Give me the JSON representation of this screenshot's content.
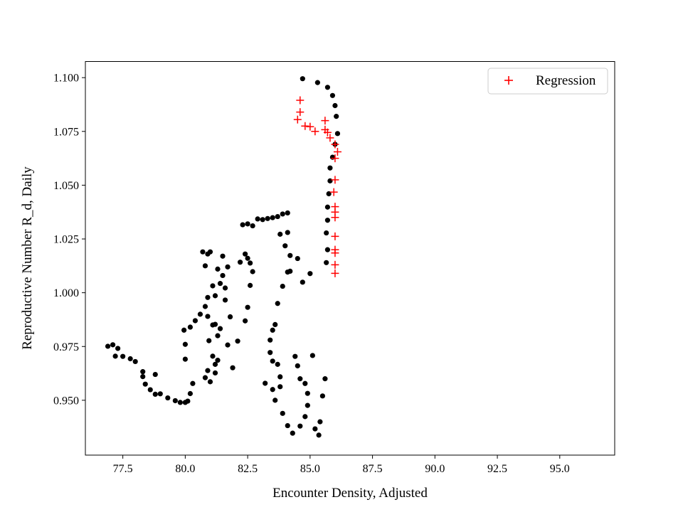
{
  "chart_data": {
    "type": "scatter",
    "title": "",
    "xlabel": "Encounter Density, Adjusted",
    "ylabel": "Reproductive Number R_d, Daily",
    "xlim": [
      76.0,
      97.2
    ],
    "ylim": [
      0.9245,
      1.1075
    ],
    "xticks": [
      77.5,
      80.0,
      82.5,
      85.0,
      87.5,
      90.0,
      92.5,
      95.0
    ],
    "xtick_labels": [
      "77.5",
      "80.0",
      "82.5",
      "85.0",
      "87.5",
      "90.0",
      "92.5",
      "95.0"
    ],
    "yticks": [
      0.95,
      0.975,
      1.0,
      1.025,
      1.05,
      1.075,
      1.1
    ],
    "ytick_labels": [
      "0.950",
      "0.975",
      "1.000",
      "1.025",
      "1.050",
      "1.075",
      "1.100"
    ],
    "grid": false,
    "legend": {
      "position": "top-right",
      "entries": [
        "Regression"
      ]
    },
    "series": [
      {
        "marker": "dot",
        "color": "#000000",
        "points": [
          [
            76.9,
            0.9751
          ],
          [
            77.1,
            0.9758
          ],
          [
            77.3,
            0.9741
          ],
          [
            77.2,
            0.9705
          ],
          [
            77.5,
            0.9704
          ],
          [
            77.8,
            0.9693
          ],
          [
            78.0,
            0.968
          ],
          [
            78.3,
            0.9633
          ],
          [
            78.3,
            0.961
          ],
          [
            78.4,
            0.9575
          ],
          [
            78.6,
            0.9549
          ],
          [
            78.8,
            0.962
          ],
          [
            78.8,
            0.9528
          ],
          [
            79.0,
            0.953
          ],
          [
            79.3,
            0.9511
          ],
          [
            79.6,
            0.9498
          ],
          [
            79.8,
            0.949
          ],
          [
            80.0,
            0.949
          ],
          [
            80.1,
            0.9496
          ],
          [
            80.2,
            0.9531
          ],
          [
            80.3,
            0.9578
          ],
          [
            80.0,
            0.9691
          ],
          [
            80.0,
            0.976
          ],
          [
            79.95,
            0.9826
          ],
          [
            80.2,
            0.984
          ],
          [
            80.4,
            0.987
          ],
          [
            80.6,
            0.99
          ],
          [
            80.8,
            0.9936
          ],
          [
            80.9,
            0.9978
          ],
          [
            80.9,
            0.989
          ],
          [
            81.1,
            0.985
          ],
          [
            80.95,
            0.9777
          ],
          [
            81.1,
            0.9705
          ],
          [
            81.2,
            0.9667
          ],
          [
            80.9,
            0.9638
          ],
          [
            80.8,
            0.9605
          ],
          [
            81.0,
            0.9586
          ],
          [
            81.2,
            0.9627
          ],
          [
            81.3,
            0.9686
          ],
          [
            81.3,
            0.98
          ],
          [
            81.4,
            0.9833
          ],
          [
            81.2,
            0.9853
          ],
          [
            80.8,
            1.0125
          ],
          [
            80.9,
            1.018
          ],
          [
            80.7,
            1.019
          ],
          [
            81.0,
            1.019
          ],
          [
            81.1,
            1.0032
          ],
          [
            81.2,
            0.9986
          ],
          [
            81.4,
            1.0043
          ],
          [
            81.5,
            1.008
          ],
          [
            81.3,
            1.011
          ],
          [
            81.5,
            1.017
          ],
          [
            81.7,
            1.012
          ],
          [
            81.6,
            1.0022
          ],
          [
            81.6,
            0.9966
          ],
          [
            81.8,
            0.9888
          ],
          [
            81.7,
            0.9757
          ],
          [
            81.9,
            0.9651
          ],
          [
            82.1,
            0.9775
          ],
          [
            82.2,
            1.0142
          ],
          [
            82.4,
            1.018
          ],
          [
            82.5,
            1.016
          ],
          [
            82.6,
            1.0138
          ],
          [
            82.7,
            1.0098
          ],
          [
            82.6,
            1.0034
          ],
          [
            82.5,
            0.9932
          ],
          [
            82.4,
            0.9869
          ],
          [
            82.3,
            1.0316
          ],
          [
            82.5,
            1.032
          ],
          [
            82.7,
            1.0311
          ],
          [
            82.9,
            1.0343
          ],
          [
            83.1,
            1.034
          ],
          [
            83.3,
            1.0345
          ],
          [
            83.5,
            1.0349
          ],
          [
            83.7,
            1.0354
          ],
          [
            83.9,
            1.0366
          ],
          [
            84.1,
            1.0371
          ],
          [
            83.8,
            1.0272
          ],
          [
            84.0,
            1.0218
          ],
          [
            84.2,
            1.0173
          ],
          [
            84.1,
            1.0096
          ],
          [
            83.9,
            1.003
          ],
          [
            83.7,
            0.995
          ],
          [
            83.6,
            0.9852
          ],
          [
            83.5,
            0.9826
          ],
          [
            83.4,
            0.978
          ],
          [
            83.4,
            0.9722
          ],
          [
            83.5,
            0.9682
          ],
          [
            83.7,
            0.9667
          ],
          [
            83.8,
            0.9609
          ],
          [
            83.8,
            0.9563
          ],
          [
            83.5,
            0.955
          ],
          [
            83.2,
            0.9579
          ],
          [
            83.6,
            0.95
          ],
          [
            83.9,
            0.9439
          ],
          [
            84.1,
            0.9382
          ],
          [
            84.3,
            0.9347
          ],
          [
            84.6,
            0.938
          ],
          [
            84.8,
            0.9424
          ],
          [
            84.9,
            0.9476
          ],
          [
            84.9,
            0.9532
          ],
          [
            84.8,
            0.9578
          ],
          [
            84.6,
            0.96
          ],
          [
            84.5,
            0.966
          ],
          [
            84.4,
            0.9704
          ],
          [
            85.2,
            0.9367
          ],
          [
            85.35,
            0.9338
          ],
          [
            85.4,
            0.94
          ],
          [
            85.5,
            0.952
          ],
          [
            85.6,
            0.96
          ],
          [
            84.7,
            1.0049
          ],
          [
            84.5,
            1.0159
          ],
          [
            84.2,
            1.01
          ],
          [
            84.1,
            1.028
          ],
          [
            85.0,
            1.0089
          ],
          [
            85.1,
            0.9708
          ],
          [
            84.7,
            1.0995
          ],
          [
            85.3,
            1.0977
          ],
          [
            85.7,
            1.0955
          ],
          [
            85.9,
            1.0917
          ],
          [
            86.0,
            1.087
          ],
          [
            86.05,
            1.082
          ],
          [
            86.1,
            1.074
          ],
          [
            86.0,
            1.069
          ],
          [
            85.9,
            1.063
          ],
          [
            85.8,
            1.058
          ],
          [
            85.8,
            1.052
          ],
          [
            85.75,
            1.046
          ],
          [
            85.7,
            1.0398
          ],
          [
            85.7,
            1.0337
          ],
          [
            85.65,
            1.0278
          ],
          [
            85.7,
            1.02
          ],
          [
            85.65,
            1.014
          ]
        ]
      },
      {
        "name": "Regression",
        "marker": "plus",
        "color": "#ff0000",
        "points": [
          [
            84.6,
            1.0895
          ],
          [
            84.6,
            1.084
          ],
          [
            84.5,
            1.0805
          ],
          [
            84.8,
            1.0775
          ],
          [
            85.0,
            1.0772
          ],
          [
            85.2,
            1.075
          ],
          [
            85.6,
            1.0758
          ],
          [
            85.6,
            1.08
          ],
          [
            85.7,
            1.0745
          ],
          [
            85.8,
            1.072
          ],
          [
            86.0,
            1.069
          ],
          [
            86.1,
            1.0655
          ],
          [
            86.0,
            1.0625
          ],
          [
            86.0,
            1.0525
          ],
          [
            85.95,
            1.0468
          ],
          [
            86.0,
            1.04
          ],
          [
            86.0,
            1.0375
          ],
          [
            86.0,
            1.035
          ],
          [
            86.0,
            1.0262
          ],
          [
            86.0,
            1.02
          ],
          [
            86.0,
            1.0185
          ],
          [
            86.0,
            1.013
          ],
          [
            86.0,
            1.009
          ]
        ]
      }
    ]
  }
}
